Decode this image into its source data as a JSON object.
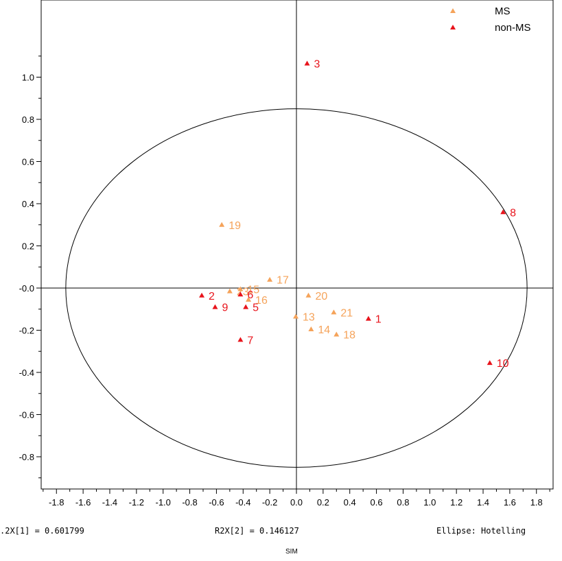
{
  "chart_data": {
    "type": "scatter",
    "title": "",
    "xlabel": "",
    "ylabel": "",
    "xlim": [
      -1.9,
      1.9
    ],
    "ylim": [
      -0.95,
      1.15
    ],
    "x_ticks": [
      "-1.8",
      "-1.6",
      "-1.4",
      "-1.2",
      "-1.0",
      "-0.8",
      "-0.6",
      "-0.4",
      "-0.2",
      "0.0",
      "0.2",
      "0.4",
      "0.6",
      "0.8",
      "1.0",
      "1.2",
      "1.4",
      "1.6",
      "1.8"
    ],
    "x_tick_values": [
      -1.8,
      -1.6,
      -1.4,
      -1.2,
      -1.0,
      -0.8,
      -0.6,
      -0.4,
      -0.2,
      0.0,
      0.2,
      0.4,
      0.6,
      0.8,
      1.0,
      1.2,
      1.4,
      1.6,
      1.8
    ],
    "y_ticks": [
      "1.0",
      "0.8",
      "0.6",
      "0.4",
      "0.2",
      "-0.0",
      "-0.2",
      "-0.4",
      "-0.6",
      "-0.8"
    ],
    "y_tick_values": [
      1.0,
      0.8,
      0.6,
      0.4,
      0.2,
      0.0,
      -0.2,
      -0.4,
      -0.6,
      -0.8
    ],
    "ellipse": {
      "rx": 1.73,
      "ry": 0.85
    },
    "legend_position": "top-right",
    "grid": false,
    "series": [
      {
        "name": "MS",
        "color": "#f5a35a",
        "marker": "triangle",
        "points": [
          {
            "label": "19",
            "x": -0.56,
            "y": 0.3
          },
          {
            "label": "17",
            "x": -0.2,
            "y": 0.04
          },
          {
            "label": "15",
            "x": -0.42,
            "y": -0.005
          },
          {
            "label": "23",
            "x": -0.5,
            "y": -0.015
          },
          {
            "label": "16",
            "x": -0.36,
            "y": -0.055
          },
          {
            "label": "20",
            "x": 0.09,
            "y": -0.035
          },
          {
            "label": "13",
            "x": -0.005,
            "y": -0.135
          },
          {
            "label": "21",
            "x": 0.28,
            "y": -0.115
          },
          {
            "label": "14",
            "x": 0.11,
            "y": -0.195
          },
          {
            "label": "18",
            "x": 0.3,
            "y": -0.22
          }
        ]
      },
      {
        "name": "non-MS",
        "color": "#e8141c",
        "marker": "triangle",
        "points": [
          {
            "label": "3",
            "x": 0.08,
            "y": 1.065
          },
          {
            "label": "8",
            "x": 1.55,
            "y": 0.36
          },
          {
            "label": "2",
            "x": -0.71,
            "y": -0.035
          },
          {
            "label": "6",
            "x": -0.42,
            "y": -0.03
          },
          {
            "label": "9",
            "x": -0.61,
            "y": -0.09
          },
          {
            "label": "5",
            "x": -0.38,
            "y": -0.09
          },
          {
            "label": "1",
            "x": 0.54,
            "y": -0.145
          },
          {
            "label": "7",
            "x": -0.42,
            "y": -0.245
          },
          {
            "label": "10",
            "x": 1.45,
            "y": -0.355
          }
        ]
      }
    ]
  },
  "footer": {
    "r2x1": ".2X[1] = 0.601799",
    "r2x2": "R2X[2] = 0.146127",
    "ellipse": "Ellipse: Hotelling",
    "sim": "SIM"
  }
}
